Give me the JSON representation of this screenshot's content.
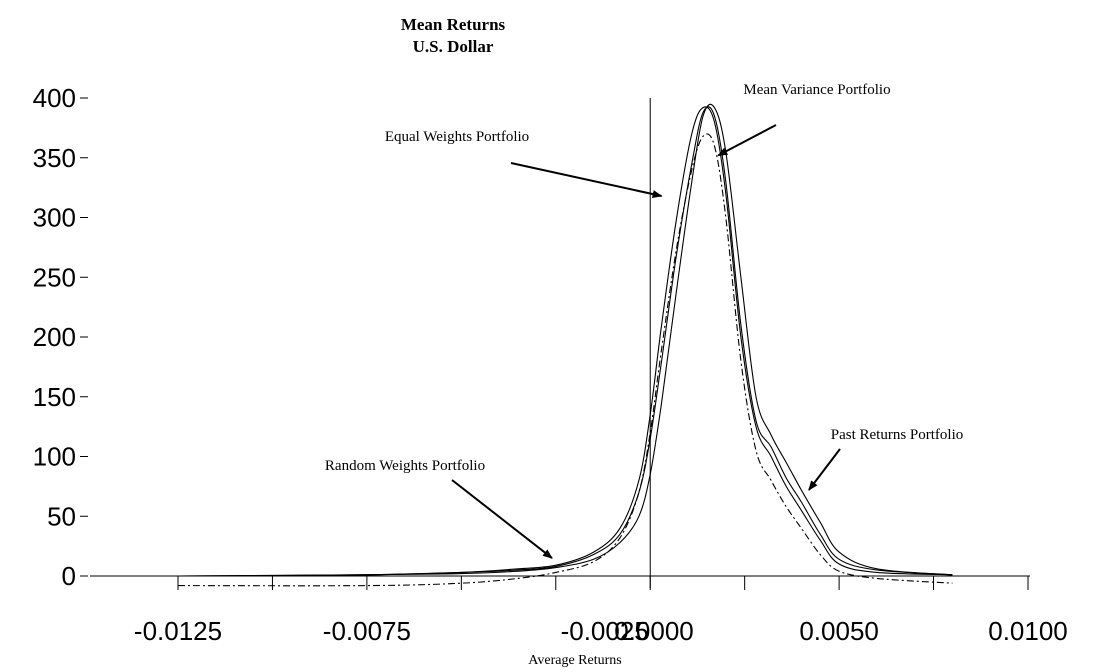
{
  "chart_data": {
    "type": "line",
    "title": "Mean Returns",
    "subtitle": "U.S. Dollar",
    "xlabel": "Average Returns",
    "ylabel": "",
    "xlim": [
      -0.0125,
      0.01
    ],
    "ylim": [
      0,
      400
    ],
    "x_ticks": [
      "-0.0125",
      "-0.0075",
      "-0.0025",
      "0.0000",
      "0.0050",
      "0.0100"
    ],
    "x_tick_values": [
      -0.0125,
      -0.0075,
      -0.0025,
      0.0,
      0.005,
      0.01
    ],
    "y_ticks": [
      "0",
      "50",
      "100",
      "150",
      "200",
      "250",
      "300",
      "350",
      "400"
    ],
    "y_tick_values": [
      0,
      50,
      100,
      150,
      200,
      250,
      300,
      350,
      400
    ],
    "reference_line_x": 0.0,
    "grid": false,
    "legend": "none",
    "series": [
      {
        "style": "solid",
        "points": [
          [
            -0.0125,
            0
          ],
          [
            -0.0075,
            1
          ],
          [
            -0.005,
            3
          ],
          [
            -0.0035,
            6
          ],
          [
            -0.0025,
            9
          ],
          [
            -0.0015,
            20
          ],
          [
            -0.0008,
            40
          ],
          [
            -0.0003,
            80
          ],
          [
            0.0,
            135
          ],
          [
            0.0003,
            210
          ],
          [
            0.0007,
            300
          ],
          [
            0.0011,
            370
          ],
          [
            0.0014,
            392
          ],
          [
            0.0017,
            380
          ],
          [
            0.002,
            320
          ],
          [
            0.0024,
            200
          ],
          [
            0.0028,
            125
          ],
          [
            0.0032,
            100
          ],
          [
            0.0036,
            75
          ],
          [
            0.004,
            55
          ],
          [
            0.0045,
            30
          ],
          [
            0.005,
            10
          ],
          [
            0.006,
            3
          ],
          [
            0.008,
            1
          ]
        ]
      },
      {
        "style": "solid",
        "points": [
          [
            -0.011,
            0
          ],
          [
            -0.0075,
            1
          ],
          [
            -0.005,
            3
          ],
          [
            -0.0035,
            5
          ],
          [
            -0.0025,
            8
          ],
          [
            -0.0015,
            18
          ],
          [
            -0.0008,
            35
          ],
          [
            -0.0003,
            70
          ],
          [
            0.0,
            115
          ],
          [
            0.0003,
            180
          ],
          [
            0.0007,
            270
          ],
          [
            0.0011,
            345
          ],
          [
            0.0014,
            388
          ],
          [
            0.0017,
            385
          ],
          [
            0.002,
            330
          ],
          [
            0.0024,
            210
          ],
          [
            0.0028,
            130
          ],
          [
            0.0032,
            108
          ],
          [
            0.0036,
            82
          ],
          [
            0.004,
            62
          ],
          [
            0.0045,
            35
          ],
          [
            0.005,
            14
          ],
          [
            0.006,
            5
          ],
          [
            0.008,
            1
          ]
        ]
      },
      {
        "style": "solid",
        "points": [
          [
            -0.0125,
            0
          ],
          [
            -0.0075,
            1
          ],
          [
            -0.005,
            2
          ],
          [
            -0.0035,
            4
          ],
          [
            -0.0025,
            7
          ],
          [
            -0.0015,
            14
          ],
          [
            -0.0008,
            28
          ],
          [
            -0.0003,
            50
          ],
          [
            0.0,
            85
          ],
          [
            0.0003,
            145
          ],
          [
            0.0007,
            240
          ],
          [
            0.0011,
            330
          ],
          [
            0.0014,
            385
          ],
          [
            0.0017,
            392
          ],
          [
            0.002,
            355
          ],
          [
            0.0024,
            250
          ],
          [
            0.0028,
            150
          ],
          [
            0.0032,
            118
          ],
          [
            0.0036,
            95
          ],
          [
            0.004,
            72
          ],
          [
            0.0045,
            45
          ],
          [
            0.005,
            20
          ],
          [
            0.006,
            6
          ],
          [
            0.008,
            1
          ]
        ]
      },
      {
        "style": "dash-dot",
        "points": [
          [
            -0.0125,
            -8
          ],
          [
            -0.0075,
            -8
          ],
          [
            -0.005,
            -6
          ],
          [
            -0.0035,
            -2
          ],
          [
            -0.0025,
            3
          ],
          [
            -0.0015,
            12
          ],
          [
            -0.0008,
            32
          ],
          [
            -0.0003,
            70
          ],
          [
            0.0,
            120
          ],
          [
            0.0003,
            190
          ],
          [
            0.0007,
            275
          ],
          [
            0.0011,
            340
          ],
          [
            0.0014,
            368
          ],
          [
            0.0017,
            360
          ],
          [
            0.002,
            300
          ],
          [
            0.0024,
            180
          ],
          [
            0.0028,
            105
          ],
          [
            0.0032,
            80
          ],
          [
            0.0036,
            58
          ],
          [
            0.004,
            40
          ],
          [
            0.0045,
            18
          ],
          [
            0.005,
            4
          ],
          [
            0.006,
            -2
          ],
          [
            0.008,
            -6
          ]
        ]
      }
    ],
    "annotations": [
      {
        "text": "Mean Variance Portfolio",
        "target": [
          0.0018,
          352
        ]
      },
      {
        "text": "Equal Weights Portfolio",
        "target": [
          0.0003,
          318
        ]
      },
      {
        "text": "Past Returns Portfolio",
        "target": [
          0.0042,
          72
        ]
      },
      {
        "text": "Random Weights Portfolio",
        "target": [
          -0.0026,
          15
        ]
      }
    ]
  }
}
